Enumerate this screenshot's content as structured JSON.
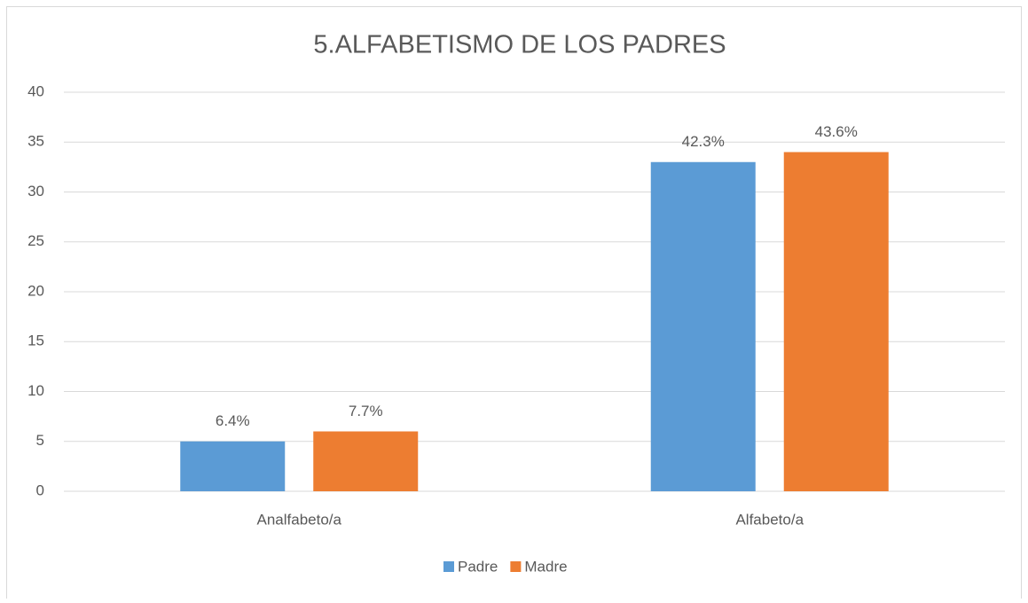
{
  "chart_data": {
    "type": "bar",
    "title": "5.ALFABETISMO DE LOS PADRES",
    "categories": [
      "Analfabeto/a",
      "Alfabeto/a"
    ],
    "series": [
      {
        "name": "Padre",
        "color": "#5b9bd5",
        "values": [
          5,
          33
        ],
        "value_labels": [
          "6.4%",
          "42.3%"
        ]
      },
      {
        "name": "Madre",
        "color": "#ed7d31",
        "values": [
          6,
          34
        ],
        "value_labels": [
          "7.7%",
          "43.6%"
        ]
      }
    ],
    "ylim": [
      0,
      40
    ],
    "yticks": [
      0,
      5,
      10,
      15,
      20,
      25,
      30,
      35,
      40
    ],
    "grid": true,
    "legend": "bottom"
  }
}
